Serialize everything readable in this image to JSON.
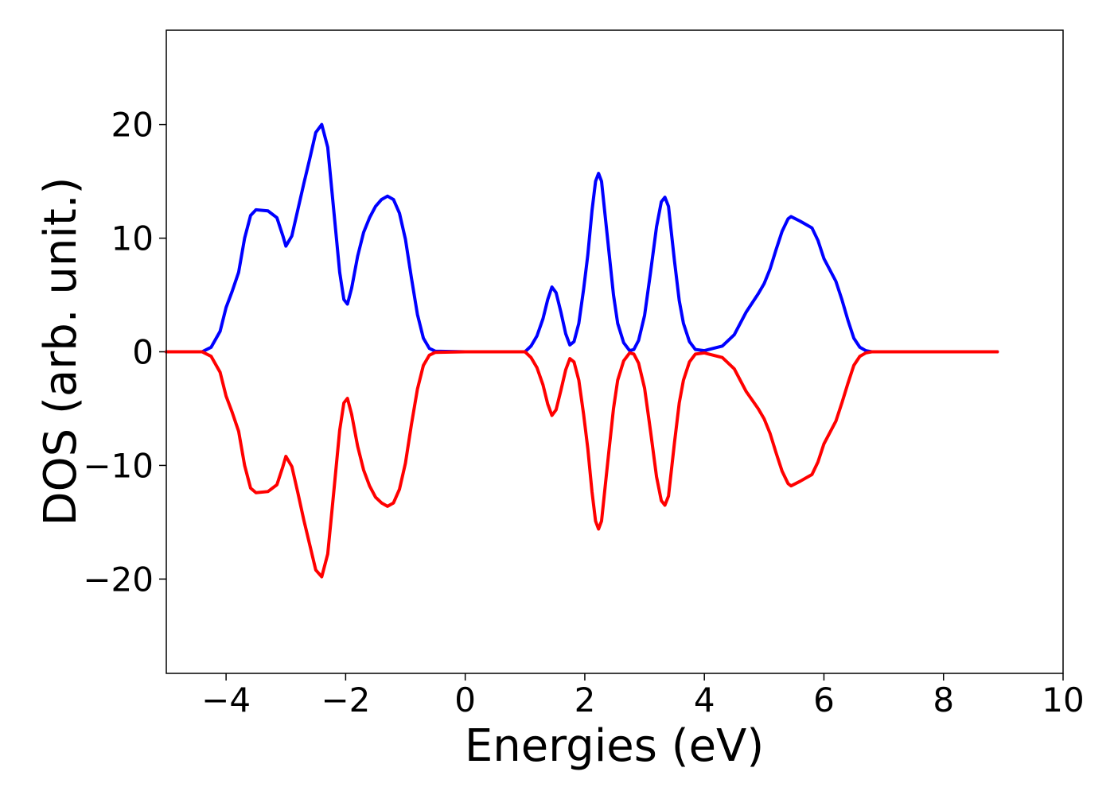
{
  "chart_data": {
    "type": "line",
    "xlabel": "Energies (eV)",
    "ylabel": "DOS (arb. unit.)",
    "xlim": [
      -5,
      10
    ],
    "ylim": [
      -28.3,
      28.3
    ],
    "xticks": [
      {
        "value": -4,
        "label": "−4"
      },
      {
        "value": -2,
        "label": "−2"
      },
      0,
      2,
      4,
      6,
      8,
      10
    ],
    "yticks": [
      {
        "value": -20,
        "label": "−20"
      },
      {
        "value": -10,
        "label": "−10"
      },
      0,
      10,
      20
    ],
    "x": [
      -5,
      -4.4,
      -4.25,
      -4.1,
      -4,
      -3.9,
      -3.79,
      -3.69,
      -3.59,
      -3.5,
      -3.3,
      -3.15,
      -3.05,
      -3.0,
      -2.9,
      -2.8,
      -2.7,
      -2.6,
      -2.5,
      -2.4,
      -2.3,
      -2.2,
      -2.1,
      -2.03,
      -1.97,
      -1.9,
      -1.8,
      -1.7,
      -1.6,
      -1.5,
      -1.4,
      -1.3,
      -1.2,
      -1.1,
      -1.0,
      -0.9,
      -0.8,
      -0.7,
      -0.6,
      -0.5,
      0,
      1.0,
      1.1,
      1.2,
      1.3,
      1.38,
      1.45,
      1.52,
      1.6,
      1.68,
      1.75,
      1.82,
      1.9,
      1.98,
      2.05,
      2.12,
      2.18,
      2.23,
      2.28,
      2.34,
      2.4,
      2.48,
      2.55,
      2.65,
      2.75,
      2.82,
      2.9,
      3.0,
      3.1,
      3.2,
      3.28,
      3.34,
      3.4,
      3.5,
      3.58,
      3.65,
      3.75,
      3.85,
      4.0,
      4.3,
      4.5,
      4.7,
      4.9,
      5.0,
      5.1,
      5.2,
      5.3,
      5.4,
      5.45,
      5.6,
      5.8,
      5.9,
      6.0,
      6.2,
      6.3,
      6.4,
      6.5,
      6.6,
      6.7,
      6.8,
      8.9
    ],
    "series": [
      {
        "color": "#0000ff",
        "values": [
          0,
          0,
          0.4,
          1.8,
          3.9,
          5.3,
          7.0,
          10.0,
          12.0,
          12.5,
          12.4,
          11.8,
          10.2,
          9.3,
          10.2,
          12.5,
          14.8,
          17.0,
          19.3,
          20.0,
          18.0,
          12.5,
          7.0,
          4.6,
          4.2,
          5.6,
          8.4,
          10.5,
          11.8,
          12.8,
          13.4,
          13.7,
          13.4,
          12.2,
          9.9,
          6.5,
          3.3,
          1.2,
          0.3,
          0.05,
          0,
          0,
          0.5,
          1.4,
          2.9,
          4.6,
          5.7,
          5.2,
          3.5,
          1.6,
          0.6,
          0.9,
          2.5,
          5.5,
          8.5,
          12.4,
          15.0,
          15.7,
          15.0,
          12.0,
          9.0,
          5.0,
          2.5,
          0.8,
          0.1,
          0.2,
          1.0,
          3.2,
          7.0,
          11.0,
          13.2,
          13.6,
          12.8,
          8.0,
          4.5,
          2.5,
          0.9,
          0.2,
          0.1,
          0.5,
          1.5,
          3.5,
          5.1,
          6.0,
          7.3,
          9.0,
          10.6,
          11.7,
          11.9,
          11.5,
          10.9,
          9.8,
          8.2,
          6.2,
          4.6,
          2.8,
          1.2,
          0.4,
          0.1,
          0,
          0
        ]
      },
      {
        "color": "#ff0000",
        "values": [
          0,
          0,
          -0.4,
          -1.8,
          -3.9,
          -5.3,
          -7.0,
          -10.0,
          -12.0,
          -12.4,
          -12.3,
          -11.7,
          -10.1,
          -9.2,
          -10.1,
          -12.4,
          -14.8,
          -17.0,
          -19.2,
          -19.8,
          -17.8,
          -12.4,
          -6.9,
          -4.5,
          -4.1,
          -5.5,
          -8.3,
          -10.4,
          -11.8,
          -12.8,
          -13.3,
          -13.6,
          -13.3,
          -12.1,
          -9.8,
          -6.4,
          -3.3,
          -1.2,
          -0.3,
          -0.05,
          0,
          0,
          -0.5,
          -1.4,
          -2.9,
          -4.6,
          -5.6,
          -5.1,
          -3.4,
          -1.6,
          -0.6,
          -0.9,
          -2.5,
          -5.5,
          -8.5,
          -12.3,
          -14.9,
          -15.6,
          -14.9,
          -11.9,
          -8.9,
          -5.0,
          -2.5,
          -0.8,
          -0.1,
          -0.2,
          -1.0,
          -3.2,
          -7.0,
          -11.0,
          -13.1,
          -13.5,
          -12.7,
          -8.0,
          -4.5,
          -2.5,
          -0.9,
          -0.2,
          -0.1,
          -0.5,
          -1.5,
          -3.5,
          -5.0,
          -5.9,
          -7.2,
          -8.9,
          -10.5,
          -11.6,
          -11.8,
          -11.4,
          -10.8,
          -9.7,
          -8.1,
          -6.1,
          -4.5,
          -2.8,
          -1.2,
          -0.4,
          -0.1,
          0,
          0
        ]
      }
    ]
  }
}
